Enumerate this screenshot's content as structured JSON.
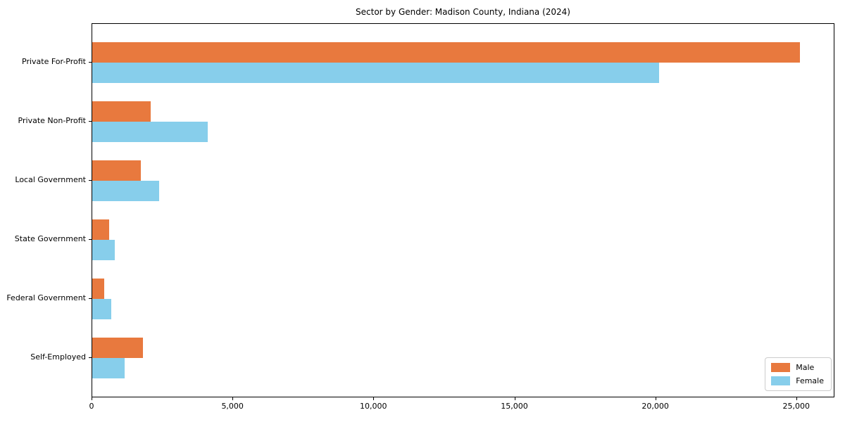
{
  "chart_data": {
    "type": "bar",
    "orientation": "horizontal",
    "title": "Sector by Gender: Madison County, Indiana (2024)",
    "xlabel": "",
    "ylabel": "",
    "categories": [
      "Private For-Profit",
      "Private Non-Profit",
      "Local Government",
      "State Government",
      "Federal Government",
      "Self-Employed"
    ],
    "series": [
      {
        "name": "Male",
        "color": "#e8793e",
        "values": [
          25100,
          2060,
          1710,
          600,
          420,
          1790
        ]
      },
      {
        "name": "Female",
        "color": "#87ceeb",
        "values": [
          20100,
          4100,
          2360,
          800,
          670,
          1150
        ]
      }
    ],
    "xlim": [
      0,
      26355
    ],
    "xticks": [
      0,
      5000,
      10000,
      15000,
      20000,
      25000
    ],
    "xtick_labels": [
      "0",
      "5,000",
      "10,000",
      "15,000",
      "20,000",
      "25,000"
    ],
    "grid": false,
    "legend": {
      "position": "lower right",
      "entries": [
        {
          "label": "Male",
          "color": "#e8793e"
        },
        {
          "label": "Female",
          "color": "#87ceeb"
        }
      ]
    }
  }
}
